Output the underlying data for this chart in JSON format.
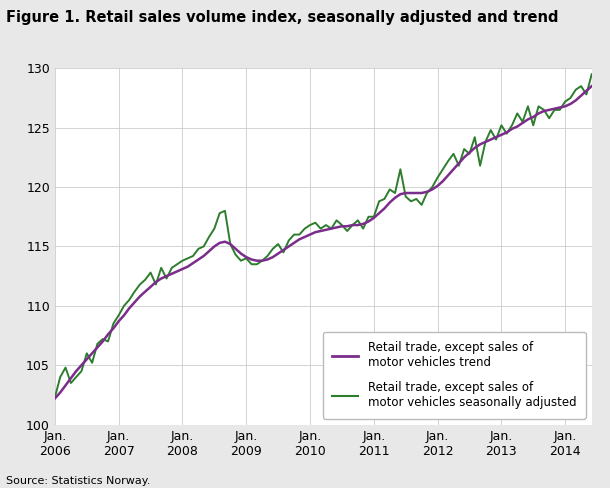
{
  "title": "Figure 1. Retail sales volume index, seasonally adjusted and trend",
  "source": "Source: Statistics Norway.",
  "ylim": [
    100,
    130
  ],
  "yticks": [
    100,
    105,
    110,
    115,
    120,
    125,
    130
  ],
  "figure_bg_color": "#e8e8e8",
  "plot_bg_color": "#ffffff",
  "trend_color": "#7b2d8b",
  "seasonal_color": "#2d7d2d",
  "trend_lw": 1.8,
  "seasonal_lw": 1.4,
  "legend_labels": [
    "Retail trade, except sales of\nmotor vehicles trend",
    "Retail trade, except sales of\nmotor vehicles seasonally adjusted"
  ],
  "x_tick_labels": [
    "Jan.\n2006",
    "Jan.\n2007",
    "Jan.\n2008",
    "Jan.\n2009",
    "Jan.\n2010",
    "Jan.\n2011",
    "Jan.\n2012",
    "Jan.\n2013",
    "Jan.\n2014"
  ],
  "x_tick_positions": [
    0,
    12,
    24,
    36,
    48,
    60,
    72,
    84,
    96
  ],
  "trend_data": [
    102.2,
    102.7,
    103.3,
    103.9,
    104.5,
    105.0,
    105.5,
    106.0,
    106.5,
    107.0,
    107.6,
    108.1,
    108.7,
    109.2,
    109.8,
    110.3,
    110.8,
    111.2,
    111.6,
    112.0,
    112.3,
    112.5,
    112.7,
    112.9,
    113.1,
    113.3,
    113.6,
    113.9,
    114.2,
    114.6,
    115.0,
    115.3,
    115.4,
    115.2,
    114.8,
    114.4,
    114.1,
    113.9,
    113.8,
    113.8,
    113.9,
    114.1,
    114.4,
    114.7,
    115.0,
    115.3,
    115.6,
    115.8,
    116.0,
    116.2,
    116.3,
    116.4,
    116.5,
    116.6,
    116.7,
    116.7,
    116.8,
    116.8,
    116.9,
    117.1,
    117.4,
    117.8,
    118.2,
    118.7,
    119.1,
    119.4,
    119.5,
    119.5,
    119.5,
    119.5,
    119.6,
    119.8,
    120.1,
    120.5,
    121.0,
    121.5,
    122.0,
    122.5,
    122.9,
    123.3,
    123.6,
    123.8,
    124.0,
    124.2,
    124.4,
    124.6,
    124.9,
    125.1,
    125.4,
    125.7,
    125.9,
    126.2,
    126.4,
    126.5,
    126.6,
    126.7,
    126.8,
    127.0,
    127.3,
    127.7,
    128.1,
    128.5
  ],
  "seasonal_data": [
    102.3,
    104.0,
    104.8,
    103.5,
    104.0,
    104.5,
    106.0,
    105.2,
    106.8,
    107.2,
    107.0,
    108.5,
    109.2,
    110.0,
    110.5,
    111.2,
    111.8,
    112.2,
    112.8,
    111.8,
    113.2,
    112.3,
    113.2,
    113.5,
    113.8,
    114.0,
    114.2,
    114.8,
    115.0,
    115.8,
    116.5,
    117.8,
    118.0,
    115.2,
    114.3,
    113.8,
    114.0,
    113.5,
    113.5,
    113.8,
    114.2,
    114.8,
    115.2,
    114.5,
    115.5,
    116.0,
    116.0,
    116.5,
    116.8,
    117.0,
    116.5,
    116.8,
    116.5,
    117.2,
    116.8,
    116.3,
    116.8,
    117.2,
    116.5,
    117.5,
    117.5,
    118.8,
    119.0,
    119.8,
    119.5,
    121.5,
    119.2,
    118.8,
    119.0,
    118.5,
    119.5,
    120.0,
    120.8,
    121.5,
    122.2,
    122.8,
    121.8,
    123.2,
    122.8,
    124.2,
    121.8,
    123.8,
    124.8,
    124.0,
    125.2,
    124.5,
    125.2,
    126.2,
    125.5,
    126.8,
    125.2,
    126.8,
    126.5,
    125.8,
    126.5,
    126.5,
    127.2,
    127.5,
    128.2,
    128.5,
    127.8,
    129.5
  ]
}
